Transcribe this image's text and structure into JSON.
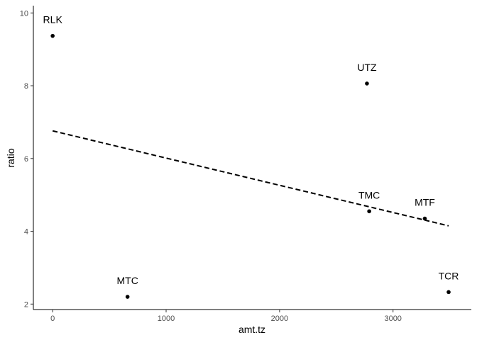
{
  "chart_data": {
    "type": "scatter",
    "xlabel": "amt.tz",
    "ylabel": "ratio",
    "xlim": [
      -170,
      3690
    ],
    "ylim": [
      1.85,
      10.2
    ],
    "x_ticks": [
      0,
      1000,
      2000,
      3000
    ],
    "x_tick_labels": [
      "0",
      "1000",
      "2000",
      "3000"
    ],
    "y_ticks": [
      2,
      4,
      6,
      8,
      10
    ],
    "y_tick_labels": [
      "2",
      "4",
      "6",
      "8",
      "10"
    ],
    "grid": false,
    "points": [
      {
        "label": "RLK",
        "x": 0,
        "y": 9.37
      },
      {
        "label": "UTZ",
        "x": 2770,
        "y": 8.06
      },
      {
        "label": "TMC",
        "x": 2790,
        "y": 4.55
      },
      {
        "label": "MTF",
        "x": 3280,
        "y": 4.35
      },
      {
        "label": "MTC",
        "x": 660,
        "y": 2.2
      },
      {
        "label": "TCR",
        "x": 3490,
        "y": 2.33
      }
    ],
    "trend_line": {
      "x": [
        0,
        3490
      ],
      "y": [
        6.76,
        4.15
      ],
      "style": "dashed"
    }
  }
}
